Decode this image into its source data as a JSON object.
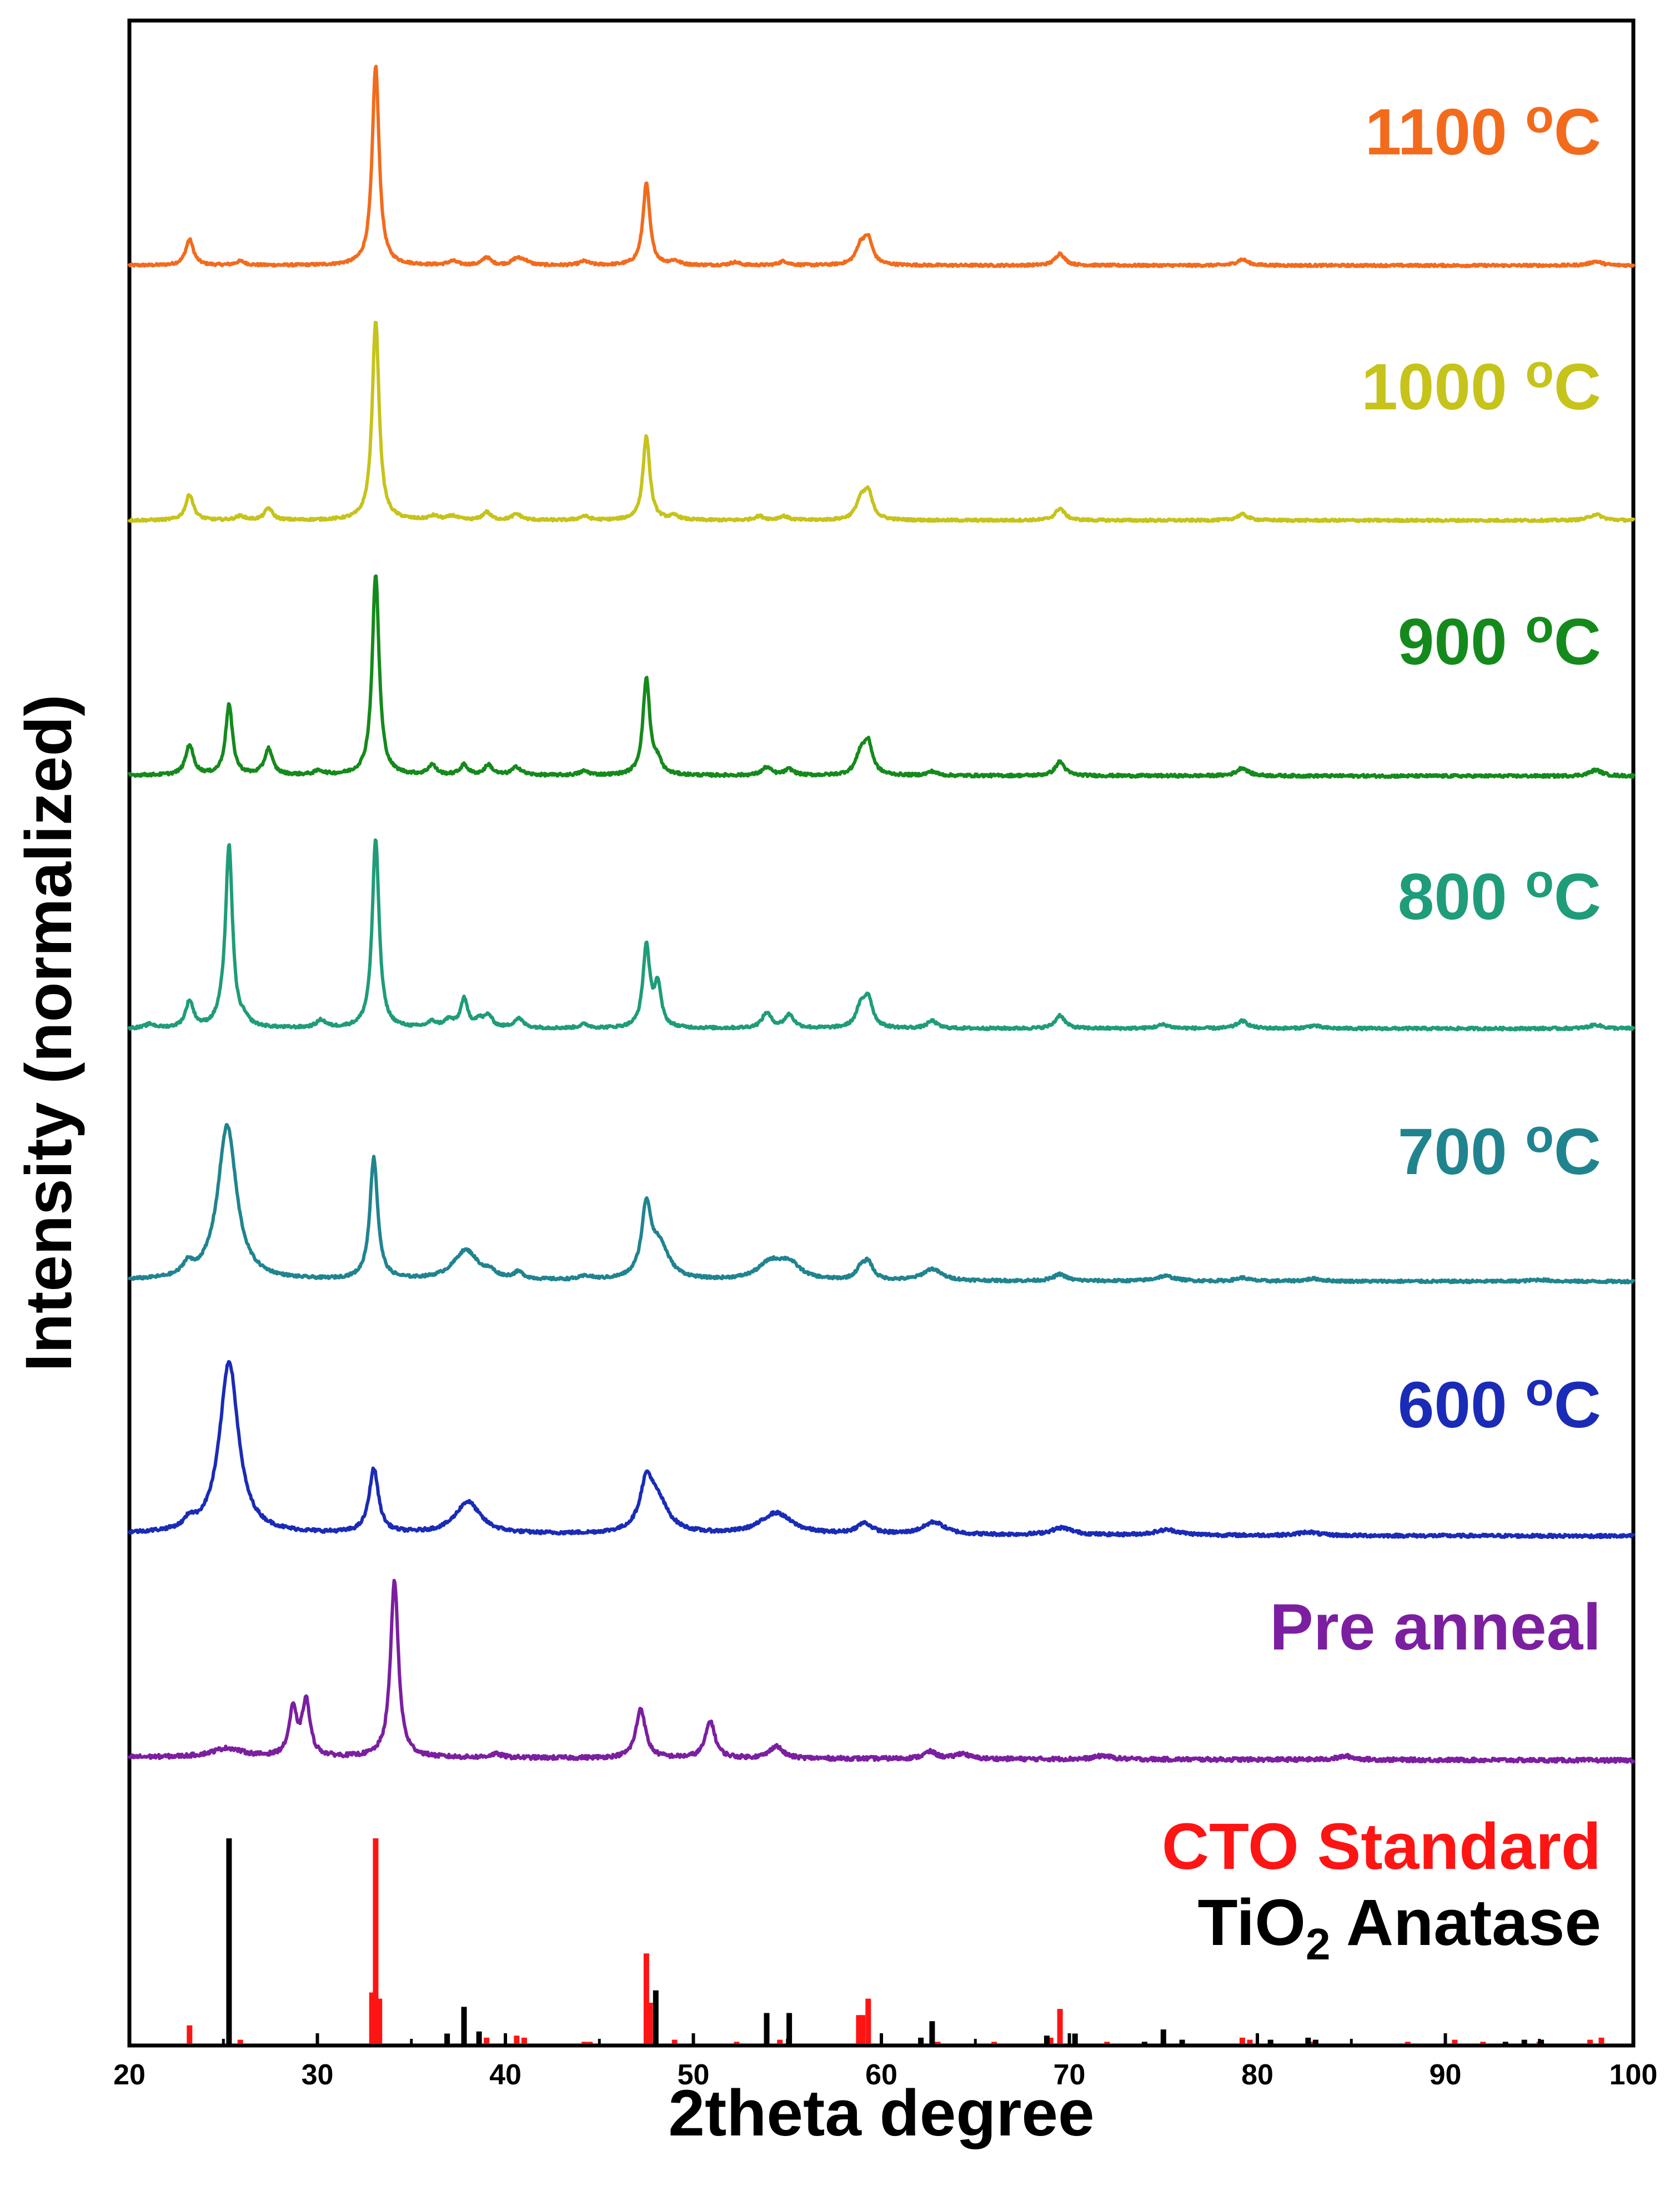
{
  "chart_data": {
    "type": "line",
    "layout": "stacked (offset) XRD patterns with reference stick patterns",
    "xlabel": "2theta degree",
    "ylabel": "Intensity (normalized)",
    "xlim": [
      20,
      100
    ],
    "x_ticks": [
      20,
      30,
      40,
      50,
      60,
      70,
      80,
      90,
      100
    ],
    "y_ticks_shown": false,
    "series": [
      {
        "name": "1100 °C",
        "label_main": "1100 ",
        "label_sup": "o",
        "label_unit": "C",
        "color": "#f26b1d",
        "baseline": 0.0,
        "slope": 0.0,
        "noise": 0.006,
        "peaks": [
          [
            23.2,
            0.13,
            0.25
          ],
          [
            25.9,
            0.02,
            0.3
          ],
          [
            33.1,
            1.0,
            0.22
          ],
          [
            37.2,
            0.02,
            0.3
          ],
          [
            39.0,
            0.04,
            0.25
          ],
          [
            40.6,
            0.03,
            0.3
          ],
          [
            41.0,
            0.02,
            0.3
          ],
          [
            44.2,
            0.02,
            0.3
          ],
          [
            47.5,
            0.41,
            0.22
          ],
          [
            49.0,
            0.02,
            0.3
          ],
          [
            52.2,
            0.015,
            0.3
          ],
          [
            54.8,
            0.02,
            0.3
          ],
          [
            58.9,
            0.09,
            0.3
          ],
          [
            59.3,
            0.12,
            0.28
          ],
          [
            69.5,
            0.06,
            0.3
          ],
          [
            79.2,
            0.03,
            0.35
          ],
          [
            98.0,
            0.02,
            0.4
          ]
        ]
      },
      {
        "name": "1000 °C",
        "label_main": "1000 ",
        "label_sup": "o",
        "label_unit": "C",
        "color": "#c6c31b",
        "baseline": 0.0,
        "slope": 0.0,
        "noise": 0.006,
        "peaks": [
          [
            23.2,
            0.13,
            0.25
          ],
          [
            25.9,
            0.02,
            0.3
          ],
          [
            27.4,
            0.06,
            0.25
          ],
          [
            33.1,
            1.0,
            0.22
          ],
          [
            36.2,
            0.02,
            0.3
          ],
          [
            37.2,
            0.02,
            0.3
          ],
          [
            39.0,
            0.04,
            0.25
          ],
          [
            40.6,
            0.03,
            0.3
          ],
          [
            44.2,
            0.02,
            0.3
          ],
          [
            47.5,
            0.42,
            0.22
          ],
          [
            49.0,
            0.02,
            0.3
          ],
          [
            53.5,
            0.02,
            0.3
          ],
          [
            54.8,
            0.02,
            0.3
          ],
          [
            58.9,
            0.09,
            0.3
          ],
          [
            59.3,
            0.13,
            0.28
          ],
          [
            69.5,
            0.06,
            0.3
          ],
          [
            79.2,
            0.03,
            0.35
          ],
          [
            98.0,
            0.03,
            0.4
          ]
        ]
      },
      {
        "name": "900 °C",
        "label_main": "900 ",
        "label_sup": "o",
        "label_unit": "C",
        "color": "#158a1c",
        "baseline": 0.0,
        "slope": -5e-05,
        "noise": 0.007,
        "peaks": [
          [
            23.2,
            0.15,
            0.25
          ],
          [
            25.3,
            0.35,
            0.22
          ],
          [
            27.4,
            0.13,
            0.25
          ],
          [
            30.1,
            0.02,
            0.3
          ],
          [
            33.1,
            1.0,
            0.22
          ],
          [
            36.1,
            0.05,
            0.25
          ],
          [
            37.8,
            0.05,
            0.25
          ],
          [
            39.1,
            0.05,
            0.25
          ],
          [
            40.6,
            0.04,
            0.3
          ],
          [
            44.2,
            0.02,
            0.3
          ],
          [
            47.5,
            0.48,
            0.22
          ],
          [
            48.1,
            0.06,
            0.25
          ],
          [
            53.9,
            0.04,
            0.3
          ],
          [
            55.1,
            0.03,
            0.3
          ],
          [
            58.9,
            0.1,
            0.3
          ],
          [
            59.3,
            0.15,
            0.28
          ],
          [
            62.7,
            0.02,
            0.3
          ],
          [
            69.5,
            0.07,
            0.3
          ],
          [
            79.2,
            0.04,
            0.35
          ],
          [
            98.0,
            0.03,
            0.4
          ]
        ]
      },
      {
        "name": "800 °C",
        "label_main": "800 ",
        "label_sup": "o",
        "label_unit": "C",
        "color": "#1f9c79",
        "baseline": 0.0,
        "slope": 0.0,
        "noise": 0.007,
        "peaks": [
          [
            21.1,
            0.02,
            0.3
          ],
          [
            23.2,
            0.14,
            0.25
          ],
          [
            24.9,
            0.04,
            0.3
          ],
          [
            25.3,
            0.96,
            0.22
          ],
          [
            26.1,
            0.03,
            0.3
          ],
          [
            30.2,
            0.04,
            0.3
          ],
          [
            33.1,
            1.0,
            0.22
          ],
          [
            36.1,
            0.03,
            0.3
          ],
          [
            37.0,
            0.04,
            0.3
          ],
          [
            37.8,
            0.15,
            0.22
          ],
          [
            38.6,
            0.04,
            0.3
          ],
          [
            39.1,
            0.06,
            0.25
          ],
          [
            40.7,
            0.05,
            0.3
          ],
          [
            44.2,
            0.02,
            0.3
          ],
          [
            47.5,
            0.43,
            0.22
          ],
          [
            48.1,
            0.22,
            0.22
          ],
          [
            53.9,
            0.08,
            0.3
          ],
          [
            55.1,
            0.07,
            0.3
          ],
          [
            58.9,
            0.1,
            0.3
          ],
          [
            59.3,
            0.15,
            0.28
          ],
          [
            62.7,
            0.04,
            0.3
          ],
          [
            69.5,
            0.07,
            0.3
          ],
          [
            75.0,
            0.02,
            0.4
          ],
          [
            79.2,
            0.04,
            0.35
          ],
          [
            83.0,
            0.015,
            0.4
          ],
          [
            98.0,
            0.02,
            0.4
          ]
        ]
      },
      {
        "name": "700 °C",
        "label_main": "700 ",
        "label_sup": "o",
        "label_unit": "C",
        "color": "#20848f",
        "baseline": 0.0,
        "slope": -6e-05,
        "noise": 0.008,
        "peaks": [
          [
            23.1,
            0.07,
            0.3
          ],
          [
            25.2,
            0.93,
            0.6
          ],
          [
            33.0,
            0.73,
            0.25
          ],
          [
            37.9,
            0.18,
            0.8
          ],
          [
            39.2,
            0.03,
            0.3
          ],
          [
            40.7,
            0.04,
            0.3
          ],
          [
            44.3,
            0.02,
            0.4
          ],
          [
            47.5,
            0.41,
            0.3
          ],
          [
            48.2,
            0.2,
            0.6
          ],
          [
            54.1,
            0.1,
            0.8
          ],
          [
            55.1,
            0.09,
            0.7
          ],
          [
            58.9,
            0.06,
            0.3
          ],
          [
            59.3,
            0.1,
            0.3
          ],
          [
            62.7,
            0.07,
            0.6
          ],
          [
            69.5,
            0.04,
            0.4
          ],
          [
            75.1,
            0.03,
            0.6
          ],
          [
            79.2,
            0.02,
            0.4
          ],
          [
            83.0,
            0.015,
            0.5
          ],
          [
            95.0,
            0.01,
            0.6
          ]
        ]
      },
      {
        "name": "600 °C",
        "label_main": "600 ",
        "label_sup": "o",
        "label_unit": "C",
        "color": "#1a2bb7",
        "baseline": 0.0,
        "slope": -0.00015,
        "noise": 0.009,
        "peaks": [
          [
            23.2,
            0.05,
            0.3
          ],
          [
            25.3,
            0.97,
            0.6
          ],
          [
            33.0,
            0.36,
            0.3
          ],
          [
            38.0,
            0.18,
            0.8
          ],
          [
            47.5,
            0.25,
            0.4
          ],
          [
            48.1,
            0.17,
            0.7
          ],
          [
            54.4,
            0.12,
            1.0
          ],
          [
            59.1,
            0.06,
            0.5
          ],
          [
            62.8,
            0.07,
            0.7
          ],
          [
            69.6,
            0.04,
            0.7
          ],
          [
            75.2,
            0.03,
            0.8
          ],
          [
            82.7,
            0.02,
            0.6
          ]
        ]
      },
      {
        "name": "Pre anneal",
        "label_main": "Pre anneal",
        "label_sup": "",
        "label_unit": "",
        "color": "#7b1fa0",
        "baseline": 0.0,
        "slope": -0.00022,
        "noise": 0.011,
        "peaks": [
          [
            25.2,
            0.05,
            1.0
          ],
          [
            28.7,
            0.26,
            0.25
          ],
          [
            29.4,
            0.31,
            0.25
          ],
          [
            34.1,
            1.0,
            0.25
          ],
          [
            39.5,
            0.02,
            0.4
          ],
          [
            47.2,
            0.28,
            0.3
          ],
          [
            50.9,
            0.21,
            0.3
          ],
          [
            54.4,
            0.07,
            0.4
          ],
          [
            62.6,
            0.04,
            0.4
          ],
          [
            64.3,
            0.03,
            0.4
          ],
          [
            71.8,
            0.02,
            0.5
          ],
          [
            84.7,
            0.02,
            0.5
          ]
        ]
      }
    ],
    "reference_patterns": [
      {
        "name": "CTO Standard",
        "color": "#ff1414",
        "sticks": [
          [
            23.2,
            0.09
          ],
          [
            25.9,
            0.02
          ],
          [
            32.9,
            0.25
          ],
          [
            33.1,
            1.0
          ],
          [
            33.3,
            0.22
          ],
          [
            39.0,
            0.03
          ],
          [
            40.6,
            0.04
          ],
          [
            41.0,
            0.03
          ],
          [
            44.2,
            0.01
          ],
          [
            44.5,
            0.01
          ],
          [
            47.5,
            0.44
          ],
          [
            47.7,
            0.2
          ],
          [
            49.0,
            0.02
          ],
          [
            52.3,
            0.01
          ],
          [
            54.6,
            0.02
          ],
          [
            58.8,
            0.14
          ],
          [
            59.0,
            0.14
          ],
          [
            59.3,
            0.22
          ],
          [
            63.0,
            0.01
          ],
          [
            66.0,
            0.01
          ],
          [
            69.0,
            0.03
          ],
          [
            69.5,
            0.17
          ],
          [
            72.0,
            0.01
          ],
          [
            75.0,
            0.01
          ],
          [
            79.2,
            0.03
          ],
          [
            79.6,
            0.02
          ],
          [
            83.0,
            0.01
          ],
          [
            88.0,
            0.01
          ],
          [
            90.5,
            0.02
          ],
          [
            92.0,
            0.01
          ],
          [
            95.0,
            0.01
          ],
          [
            97.7,
            0.02
          ],
          [
            98.3,
            0.03
          ]
        ]
      },
      {
        "name": "TiO₂ Anatase",
        "label_main": "TiO",
        "label_sub": "2",
        "label_rest": " Anatase",
        "color": "#000000",
        "sticks": [
          [
            25.3,
            1.0
          ],
          [
            36.9,
            0.05
          ],
          [
            37.8,
            0.18
          ],
          [
            38.6,
            0.06
          ],
          [
            48.0,
            0.26
          ],
          [
            53.9,
            0.15
          ],
          [
            55.1,
            0.15
          ],
          [
            62.1,
            0.03
          ],
          [
            62.7,
            0.11
          ],
          [
            68.8,
            0.04
          ],
          [
            70.3,
            0.05
          ],
          [
            74.0,
            0.01
          ],
          [
            75.0,
            0.07
          ],
          [
            76.0,
            0.02
          ],
          [
            80.7,
            0.02
          ],
          [
            82.7,
            0.03
          ],
          [
            83.1,
            0.02
          ],
          [
            93.2,
            0.01
          ],
          [
            94.2,
            0.02
          ],
          [
            95.1,
            0.02
          ]
        ]
      }
    ]
  }
}
